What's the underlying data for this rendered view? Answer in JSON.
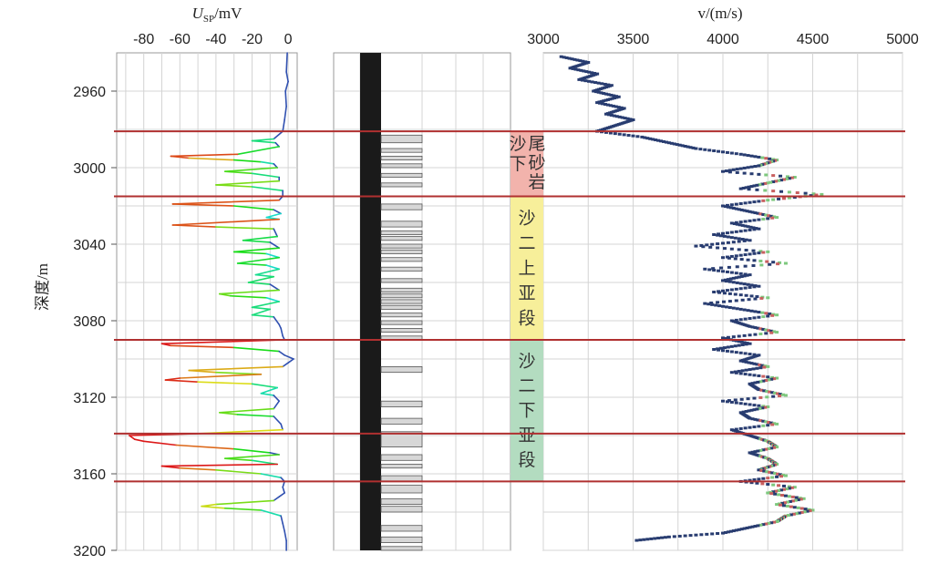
{
  "chart_data": {
    "type": "line",
    "title": "",
    "depth_axis": {
      "label": "深度/m",
      "range": [
        2940,
        3200
      ],
      "ticks": [
        2960,
        3000,
        3040,
        3080,
        3120,
        3160,
        3200
      ],
      "tick_labels": [
        "2960",
        "3000",
        "3040",
        "3080",
        "3120",
        "3160",
        "3200"
      ]
    },
    "sp_axis": {
      "label_main": "U",
      "label_sub": "SP",
      "label_unit": "/mV",
      "range": [
        -95,
        5
      ],
      "ticks": [
        -80,
        -60,
        -40,
        -20,
        0
      ],
      "tick_labels": [
        "-80",
        "-60",
        "-40",
        "-20",
        "0"
      ]
    },
    "velocity_axis": {
      "label": "v/(m/s)",
      "range": [
        3000,
        5000
      ],
      "ticks": [
        3000,
        3500,
        4000,
        4500,
        5000
      ],
      "tick_labels": [
        "3000",
        "3500",
        "4000",
        "4500",
        "5000"
      ]
    },
    "boundaries": [
      2981,
      3015,
      3090,
      3139,
      3164
    ],
    "zones": [
      {
        "label": "沙下尾砂岩",
        "chars": [
          "沙",
          "尾",
          "下",
          "砂",
          "岩"
        ],
        "top": 2981,
        "bottom": 3015,
        "color": "#f2b3ac"
      },
      {
        "label": "沙二上亚段",
        "chars": [
          "沙",
          "二",
          "上",
          "亚",
          "段"
        ],
        "top": 3015,
        "bottom": 3090,
        "color": "#f7ef9a"
      },
      {
        "label": "沙二下亚段",
        "chars": [
          "沙",
          "二",
          "下",
          "亚",
          "段"
        ],
        "top": 3090,
        "bottom": 3164,
        "color": "#b3dcc0"
      }
    ],
    "sp_series": {
      "name": "",
      "points": [
        [
          2940,
          -0.5
        ],
        [
          2950,
          -1
        ],
        [
          2955,
          0
        ],
        [
          2960,
          -1.5
        ],
        [
          2968,
          -1
        ],
        [
          2975,
          -2
        ],
        [
          2981,
          -3
        ],
        [
          2985,
          -8
        ],
        [
          2986,
          -20
        ],
        [
          2987,
          -7
        ],
        [
          2989,
          -5
        ],
        [
          2993,
          -28
        ],
        [
          2994,
          -65
        ],
        [
          2995,
          -55
        ],
        [
          2996,
          -30
        ],
        [
          2997,
          -15
        ],
        [
          2998,
          -8
        ],
        [
          3000,
          -6
        ],
        [
          3002,
          -35
        ],
        [
          3003,
          -20
        ],
        [
          3005,
          -5
        ],
        [
          3007,
          -5
        ],
        [
          3009,
          -40
        ],
        [
          3010,
          -20
        ],
        [
          3012,
          -3
        ],
        [
          3015,
          -3
        ],
        [
          3017,
          -5
        ],
        [
          3019,
          -64
        ],
        [
          3020,
          -30
        ],
        [
          3022,
          -8
        ],
        [
          3024,
          -4
        ],
        [
          3026,
          -12
        ],
        [
          3027,
          -5
        ],
        [
          3030,
          -64
        ],
        [
          3031,
          -40
        ],
        [
          3032,
          -8
        ],
        [
          3036,
          -6
        ],
        [
          3038,
          -25
        ],
        [
          3039,
          -10
        ],
        [
          3042,
          -5
        ],
        [
          3044,
          -30
        ],
        [
          3045,
          -12
        ],
        [
          3047,
          -5
        ],
        [
          3050,
          -28
        ],
        [
          3051,
          -12
        ],
        [
          3053,
          -5
        ],
        [
          3056,
          -18
        ],
        [
          3057,
          -8
        ],
        [
          3060,
          -22
        ],
        [
          3061,
          -10
        ],
        [
          3064,
          -5
        ],
        [
          3066,
          -38
        ],
        [
          3067,
          -32
        ],
        [
          3068,
          -12
        ],
        [
          3070,
          -5
        ],
        [
          3073,
          -20
        ],
        [
          3074,
          -10
        ],
        [
          3077,
          -20
        ],
        [
          3078,
          -8
        ],
        [
          3082,
          -5
        ],
        [
          3084,
          -4
        ],
        [
          3088,
          -3
        ],
        [
          3090,
          -2
        ],
        [
          3092,
          -70
        ],
        [
          3093,
          -65
        ],
        [
          3094,
          -30
        ],
        [
          3096,
          -5
        ],
        [
          3098,
          -2
        ],
        [
          3100,
          3
        ],
        [
          3102,
          0
        ],
        [
          3104,
          -3
        ],
        [
          3106,
          -55
        ],
        [
          3107,
          -40
        ],
        [
          3108,
          -15
        ],
        [
          3110,
          -60
        ],
        [
          3111,
          -68
        ],
        [
          3112,
          -50
        ],
        [
          3113,
          -20
        ],
        [
          3115,
          -6
        ],
        [
          3118,
          -15
        ],
        [
          3119,
          -8
        ],
        [
          3122,
          -5
        ],
        [
          3126,
          -8
        ],
        [
          3128,
          -38
        ],
        [
          3129,
          -28
        ],
        [
          3130,
          -8
        ],
        [
          3134,
          -4
        ],
        [
          3137,
          -3
        ],
        [
          3139,
          -50
        ],
        [
          3140,
          -88
        ],
        [
          3142,
          -85
        ],
        [
          3143,
          -80
        ],
        [
          3145,
          -62
        ],
        [
          3147,
          -30
        ],
        [
          3149,
          -10
        ],
        [
          3150,
          -5
        ],
        [
          3152,
          -35
        ],
        [
          3153,
          -20
        ],
        [
          3155,
          -6
        ],
        [
          3156,
          -70
        ],
        [
          3157,
          -60
        ],
        [
          3158,
          -40
        ],
        [
          3160,
          -15
        ],
        [
          3162,
          -4
        ],
        [
          3164,
          -2
        ],
        [
          3167,
          -3
        ],
        [
          3170,
          -2
        ],
        [
          3172,
          -5
        ],
        [
          3174,
          -8
        ],
        [
          3176,
          -40
        ],
        [
          3177,
          -48
        ],
        [
          3178,
          -35
        ],
        [
          3179,
          -15
        ],
        [
          3182,
          -4
        ],
        [
          3186,
          -3
        ],
        [
          3190,
          -2
        ],
        [
          3195,
          -1
        ],
        [
          3200,
          -1
        ]
      ]
    },
    "velocity_series": {
      "name": "",
      "points": [
        [
          2942,
          3100
        ],
        [
          2945,
          3250
        ],
        [
          2948,
          3150
        ],
        [
          2951,
          3300
        ],
        [
          2954,
          3200
        ],
        [
          2957,
          3380
        ],
        [
          2960,
          3280
        ],
        [
          2963,
          3420
        ],
        [
          2966,
          3300
        ],
        [
          2969,
          3450
        ],
        [
          2972,
          3350
        ],
        [
          2975,
          3500
        ],
        [
          2978,
          3400
        ],
        [
          2981,
          3300
        ],
        [
          2984,
          3550
        ],
        [
          2987,
          3700
        ],
        [
          2990,
          3850
        ],
        [
          2993,
          4100
        ],
        [
          2996,
          4300
        ],
        [
          2999,
          4200
        ],
        [
          3002,
          4000
        ],
        [
          3005,
          4400
        ],
        [
          3008,
          4250
        ],
        [
          3011,
          4100
        ],
        [
          3014,
          4550
        ],
        [
          3017,
          4250
        ],
        [
          3020,
          4000
        ],
        [
          3023,
          4150
        ],
        [
          3026,
          4300
        ],
        [
          3029,
          4050
        ],
        [
          3032,
          4200
        ],
        [
          3035,
          3950
        ],
        [
          3038,
          4150
        ],
        [
          3041,
          3850
        ],
        [
          3044,
          4250
        ],
        [
          3047,
          4000
        ],
        [
          3050,
          4350
        ],
        [
          3053,
          3900
        ],
        [
          3056,
          4150
        ],
        [
          3059,
          4000
        ],
        [
          3062,
          4200
        ],
        [
          3065,
          3950
        ],
        [
          3068,
          4250
        ],
        [
          3071,
          3900
        ],
        [
          3074,
          4100
        ],
        [
          3077,
          4300
        ],
        [
          3080,
          4050
        ],
        [
          3083,
          4150
        ],
        [
          3086,
          4300
        ],
        [
          3089,
          4000
        ],
        [
          3092,
          4150
        ],
        [
          3095,
          3950
        ],
        [
          3098,
          4200
        ],
        [
          3101,
          4100
        ],
        [
          3104,
          4250
        ],
        [
          3107,
          4050
        ],
        [
          3110,
          4300
        ],
        [
          3113,
          4150
        ],
        [
          3116,
          4200
        ],
        [
          3119,
          4350
        ],
        [
          3122,
          4000
        ],
        [
          3125,
          4250
        ],
        [
          3128,
          4100
        ],
        [
          3131,
          4150
        ],
        [
          3134,
          4300
        ],
        [
          3137,
          4050
        ],
        [
          3140,
          4150
        ],
        [
          3143,
          4250
        ],
        [
          3146,
          4300
        ],
        [
          3149,
          4150
        ],
        [
          3152,
          4250
        ],
        [
          3155,
          4300
        ],
        [
          3158,
          4200
        ],
        [
          3161,
          4350
        ],
        [
          3164,
          4100
        ],
        [
          3167,
          4400
        ],
        [
          3170,
          4250
        ],
        [
          3173,
          4450
        ],
        [
          3176,
          4300
        ],
        [
          3179,
          4500
        ],
        [
          3182,
          4350
        ],
        [
          3185,
          4300
        ],
        [
          3188,
          4150
        ],
        [
          3191,
          4000
        ],
        [
          3193,
          3700
        ],
        [
          3195,
          3500
        ]
      ]
    },
    "lithology_beds": [
      [
        2983,
        2987
      ],
      [
        2990,
        2992
      ],
      [
        2994,
        2996
      ],
      [
        2998,
        3000
      ],
      [
        3003,
        3005
      ],
      [
        3008,
        3010
      ],
      [
        3019,
        3022
      ],
      [
        3028,
        3031
      ],
      [
        3033,
        3035
      ],
      [
        3036,
        3038
      ],
      [
        3040,
        3042
      ],
      [
        3043,
        3045
      ],
      [
        3047,
        3049
      ],
      [
        3052,
        3054
      ],
      [
        3058,
        3060
      ],
      [
        3063,
        3065
      ],
      [
        3066,
        3068
      ],
      [
        3069,
        3071
      ],
      [
        3072,
        3074
      ],
      [
        3076,
        3078
      ],
      [
        3080,
        3082
      ],
      [
        3084,
        3086
      ],
      [
        3088,
        3090
      ],
      [
        3104,
        3107
      ],
      [
        3122,
        3125
      ],
      [
        3131,
        3134
      ],
      [
        3138,
        3146
      ],
      [
        3150,
        3153
      ],
      [
        3155,
        3157
      ],
      [
        3161,
        3164
      ],
      [
        3166,
        3170
      ],
      [
        3173,
        3176
      ],
      [
        3177,
        3180
      ],
      [
        3187,
        3190
      ],
      [
        3193,
        3196
      ],
      [
        3198,
        3200
      ]
    ],
    "grid": true,
    "colors": {
      "boundary": "#b03030",
      "sp_line": "#3050b0",
      "velocity_dot": "#283c70",
      "velocity_hi_a": "#7ec87e",
      "velocity_hi_b": "#c86060",
      "lithology_black": "#1a1a1a",
      "sand_bed": "#d7d7d7"
    }
  }
}
